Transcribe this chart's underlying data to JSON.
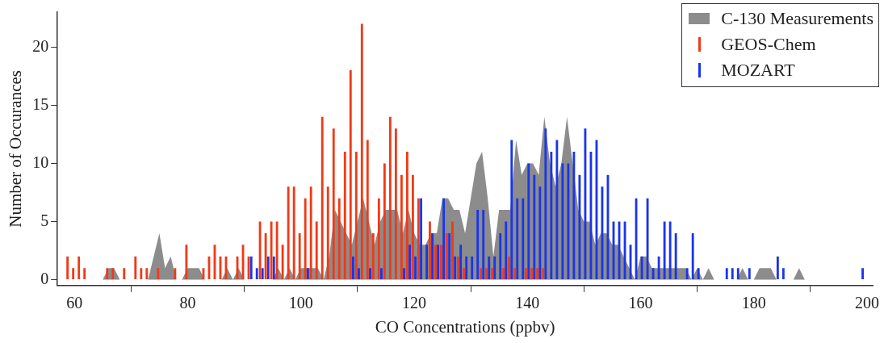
{
  "chart_data": {
    "type": "bar",
    "xlabel": "CO Concentrations (ppbv)",
    "ylabel": "Number of Occurances",
    "x": [
      58,
      59,
      60,
      61,
      62,
      63,
      64,
      65,
      66,
      67,
      68,
      69,
      70,
      71,
      72,
      73,
      74,
      75,
      76,
      77,
      78,
      79,
      80,
      81,
      82,
      83,
      84,
      85,
      86,
      87,
      88,
      89,
      90,
      91,
      92,
      93,
      94,
      95,
      96,
      97,
      98,
      99,
      100,
      101,
      102,
      103,
      104,
      105,
      106,
      107,
      108,
      109,
      110,
      111,
      112,
      113,
      114,
      115,
      116,
      117,
      118,
      119,
      120,
      121,
      122,
      123,
      124,
      125,
      126,
      127,
      128,
      129,
      130,
      131,
      132,
      133,
      134,
      135,
      136,
      137,
      138,
      139,
      140,
      141,
      142,
      143,
      144,
      145,
      146,
      147,
      148,
      149,
      150,
      151,
      152,
      153,
      154,
      155,
      156,
      157,
      158,
      159,
      160,
      161,
      162,
      163,
      164,
      165,
      166,
      167,
      168,
      169,
      170,
      171,
      172,
      173,
      174,
      175,
      176,
      177,
      178,
      179,
      180,
      181,
      182,
      183,
      184,
      185,
      186,
      187,
      188,
      189,
      190,
      191,
      192,
      193,
      194,
      195,
      196,
      197,
      198,
      199,
      200
    ],
    "series": [
      {
        "name": "C-130 Measurements",
        "type": "area",
        "color": "#8c8c8c",
        "values": [
          0,
          0,
          0,
          0,
          0,
          0,
          0,
          0,
          1,
          1,
          0,
          0,
          0,
          0,
          0,
          0,
          2,
          4,
          1,
          2,
          0,
          0,
          1,
          1,
          1,
          0,
          0,
          0,
          0,
          1,
          0,
          1,
          0,
          0,
          0,
          0,
          0,
          0,
          1,
          0,
          1,
          0,
          1,
          1,
          1,
          1,
          0,
          2,
          6,
          5,
          4,
          3,
          5,
          7,
          5,
          3,
          5,
          6,
          6,
          6,
          4,
          6,
          4,
          3,
          3,
          4,
          4,
          7,
          7,
          6,
          6,
          4,
          7,
          10,
          11,
          7,
          2,
          6,
          6,
          6,
          12,
          9,
          10,
          10,
          9,
          14,
          10,
          8,
          10,
          14,
          10,
          6,
          5,
          5,
          3,
          4,
          4,
          3,
          3,
          2,
          1,
          0,
          2,
          2,
          1,
          1,
          1,
          1,
          1,
          1,
          1,
          0,
          1,
          0,
          1,
          0,
          0,
          0,
          0,
          0,
          1,
          0,
          0,
          1,
          1,
          1,
          0,
          0,
          0,
          0,
          1,
          0,
          0,
          0,
          0,
          0,
          0,
          0,
          0,
          0,
          0,
          0,
          0
        ]
      },
      {
        "name": "GEOS-Chem",
        "color": "#f03a17",
        "values": [
          0,
          2,
          1,
          2,
          1,
          0,
          0,
          0,
          1,
          1,
          0,
          1,
          0,
          2,
          1,
          1,
          0,
          1,
          0,
          0,
          1,
          0,
          3,
          0,
          0,
          1,
          2,
          3,
          2,
          2,
          0,
          2,
          3,
          2,
          0,
          5,
          4,
          5,
          5,
          3,
          8,
          8,
          4,
          7,
          8,
          5,
          14,
          8,
          13,
          7,
          11,
          18,
          11,
          22,
          12,
          4,
          7,
          10,
          14,
          13,
          9,
          11,
          9,
          7,
          0,
          5,
          3,
          3,
          4,
          5,
          2,
          1,
          0,
          0,
          1,
          1,
          1,
          0,
          1,
          2,
          1,
          0,
          1,
          1,
          1,
          1,
          0,
          0,
          0,
          0,
          0,
          0,
          0,
          0,
          0,
          0,
          0,
          0,
          0,
          0,
          0,
          0,
          0,
          0,
          0,
          0,
          0,
          0,
          0,
          0,
          0,
          0,
          0,
          0,
          0,
          0,
          0,
          0,
          0,
          0,
          0,
          0,
          0,
          0,
          0,
          0,
          0,
          0,
          0,
          0,
          0,
          0,
          0,
          0,
          0,
          0,
          0,
          0,
          0,
          0,
          0,
          0,
          0
        ]
      },
      {
        "name": "MOZART",
        "color": "#1a35e8",
        "values": [
          0,
          0,
          0,
          0,
          0,
          0,
          0,
          0,
          0,
          0,
          0,
          0,
          0,
          0,
          0,
          0,
          0,
          0,
          0,
          0,
          0,
          0,
          0,
          0,
          0,
          0,
          0,
          0,
          0,
          0,
          0,
          0,
          0,
          2,
          1,
          1,
          2,
          2,
          0,
          0,
          0,
          0,
          0,
          1,
          0,
          0,
          0,
          0,
          0,
          0,
          0,
          2,
          1,
          0,
          1,
          0,
          1,
          0,
          0,
          0,
          1,
          3,
          2,
          7,
          3,
          4,
          3,
          7,
          4,
          2,
          3,
          2,
          2,
          6,
          6,
          2,
          2,
          4,
          5,
          12,
          7,
          7,
          10,
          9,
          8,
          13,
          11,
          12,
          10,
          10,
          11,
          9,
          13,
          11,
          12,
          8,
          9,
          5,
          5,
          5,
          3,
          7,
          2,
          7,
          1,
          2,
          5,
          5,
          4,
          0,
          1,
          4,
          1,
          0,
          0,
          0,
          0,
          1,
          1,
          1,
          0,
          1,
          0,
          0,
          0,
          0,
          2,
          1,
          0,
          0,
          0,
          0,
          0,
          0,
          0,
          0,
          0,
          0,
          0,
          0,
          0,
          1,
          0
        ]
      }
    ],
    "xlim": [
      57,
      201
    ],
    "xticks": [
      60,
      80,
      100,
      120,
      140,
      160,
      180,
      200
    ],
    "ylim": [
      -0.5,
      23
    ],
    "yticks": [
      0,
      5,
      10,
      15,
      20
    ],
    "grid": false,
    "legend": "top right"
  }
}
